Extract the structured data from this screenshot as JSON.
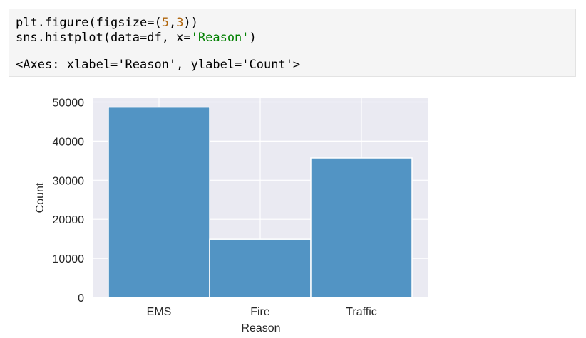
{
  "code": {
    "line1_prefix": "plt.figure(figsize=(",
    "line1_num1": "5",
    "line1_comma": ",",
    "line1_num2": "3",
    "line1_suffix": "))",
    "line2_prefix": "sns.histplot(data=df, x=",
    "line2_string": "'Reason'",
    "line2_suffix": ")",
    "output": "<Axes: xlabel='Reason', ylabel='Count'>"
  },
  "colors": {
    "bar": "#4c91c2",
    "plot_background": "#eaeaf2",
    "grid": "#ffffff"
  },
  "chart_data": {
    "type": "bar",
    "categories": [
      "EMS",
      "Fire",
      "Traffic"
    ],
    "values": [
      48700,
      14900,
      35700
    ],
    "title": "",
    "xlabel": "Reason",
    "ylabel": "Count",
    "ylim": [
      0,
      51000
    ],
    "yticks": [
      0,
      10000,
      20000,
      30000,
      40000,
      50000
    ],
    "ytick_labels": [
      "0",
      "10000",
      "20000",
      "30000",
      "40000",
      "50000"
    ],
    "grid": true
  }
}
